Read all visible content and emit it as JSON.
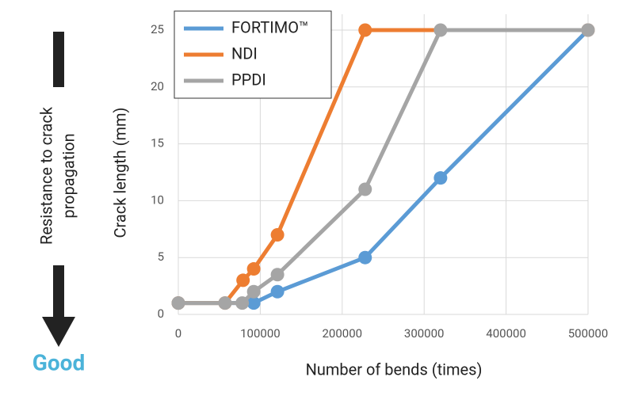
{
  "chart_data": {
    "type": "line",
    "x_label": "Number of bends (times)",
    "y_label": "Crack length (mm)",
    "annotations": [
      "Resistance to crack",
      "propagation",
      "Good"
    ],
    "xlim": [
      0,
      500000
    ],
    "xticks": [
      0,
      100000,
      200000,
      300000,
      400000,
      500000
    ],
    "ylim": [
      0,
      25
    ],
    "yticks": [
      0,
      5,
      10,
      15,
      20,
      25
    ],
    "grid": true,
    "legend": "upper left",
    "series": [
      {
        "name": "FORTIMO™",
        "color": "#5b9bd5",
        "x": [
          0,
          92000,
          121000,
          228000,
          320000,
          500000
        ],
        "values": [
          1,
          1,
          2,
          5,
          12,
          25
        ]
      },
      {
        "name": "NDI",
        "color": "#ed7d31",
        "x": [
          0,
          57000,
          79000,
          92000,
          121000,
          228000,
          500000
        ],
        "values": [
          1,
          1,
          3,
          4,
          7,
          25,
          25
        ]
      },
      {
        "name": "PPDI",
        "color": "#a5a5a5",
        "x": [
          0,
          57000,
          78000,
          92000,
          121000,
          228000,
          320000,
          500000
        ],
        "values": [
          1,
          1,
          1,
          2,
          3.5,
          11,
          25,
          25
        ]
      }
    ]
  }
}
